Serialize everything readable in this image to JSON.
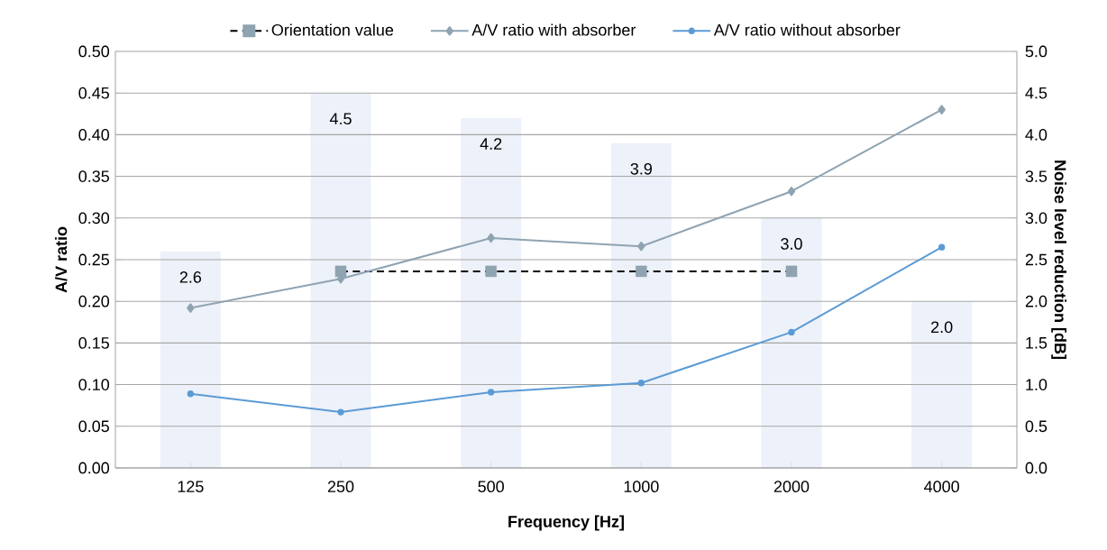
{
  "chart_data": {
    "type": "line",
    "xlabel": "Frequency [Hz]",
    "ylabel": "A/V ratio",
    "y2label": "Noise level reduction [dB]",
    "categories": [
      "125",
      "250",
      "500",
      "1000",
      "2000",
      "4000"
    ],
    "series": [
      {
        "type": "bar",
        "axis": "y2",
        "color": "#edf1f9",
        "values": [
          2.6,
          4.5,
          4.2,
          3.9,
          3.0,
          2.0
        ],
        "value_labels": [
          "2.6",
          "4.5",
          "4.2",
          "3.9",
          "3.0",
          "2.0"
        ]
      },
      {
        "name": "Orientation value",
        "color": "#000000",
        "colors": [
          null,
          "#8fa3b1",
          "#8fa3b1",
          "#8fa3b1",
          "#8fa3b1",
          null
        ],
        "marker": "square",
        "line_style": "dashed",
        "values": [
          null,
          0.236,
          0.236,
          0.236,
          0.236,
          null
        ]
      },
      {
        "name": "A/V ratio with absorber",
        "color": "#8fa3b1",
        "marker": "diamond",
        "line_style": "solid",
        "values": [
          0.192,
          0.227,
          0.276,
          0.266,
          0.332,
          0.43
        ]
      },
      {
        "name": "A/V ratio without absorber",
        "color": "#5b9bd5",
        "marker": "circle",
        "line_style": "solid",
        "values": [
          0.089,
          0.067,
          0.091,
          0.102,
          0.163,
          0.265
        ]
      }
    ],
    "ylim": [
      0,
      0.5
    ],
    "yticks": [
      {
        "value": 0,
        "label": "0.00"
      },
      {
        "value": 0.05,
        "label": "0.05"
      },
      {
        "value": 0.1,
        "label": "0.10"
      },
      {
        "value": 0.15,
        "label": "0.15"
      },
      {
        "value": 0.2,
        "label": "0.20"
      },
      {
        "value": 0.25,
        "label": "0.25"
      },
      {
        "value": 0.3,
        "label": "0.30"
      },
      {
        "value": 0.35,
        "label": "0.35"
      },
      {
        "value": 0.4,
        "label": "0.40"
      },
      {
        "value": 0.45,
        "label": "0.45"
      },
      {
        "value": 0.5,
        "label": "0.50"
      }
    ],
    "y2lim": [
      0,
      5
    ],
    "y2ticks": [
      {
        "value": 0,
        "label": "0.0"
      },
      {
        "value": 0.5,
        "label": "0.5"
      },
      {
        "value": 1,
        "label": "1.0"
      },
      {
        "value": 1.5,
        "label": "1.5"
      },
      {
        "value": 2,
        "label": "2.0"
      },
      {
        "value": 2.5,
        "label": "2.5"
      },
      {
        "value": 3,
        "label": "3.0"
      },
      {
        "value": 3.5,
        "label": "3.5"
      },
      {
        "value": 4,
        "label": "4.0"
      },
      {
        "value": 4.5,
        "label": "4.5"
      },
      {
        "value": 5,
        "label": "5.0"
      }
    ],
    "grid": "y",
    "legend": "top"
  }
}
